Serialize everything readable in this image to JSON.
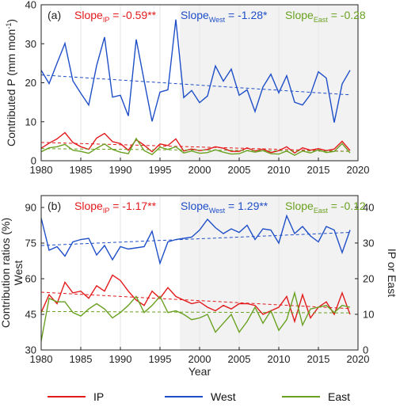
{
  "colors": {
    "IP": "#e31a1c",
    "West": "#1f4fc8",
    "East": "#6aa121",
    "shade": "#f2f2f2",
    "axis": "#222222"
  },
  "legend": {
    "position": "bottom",
    "items": [
      {
        "key": "IP",
        "label": "IP"
      },
      {
        "key": "West",
        "label": "West"
      },
      {
        "key": "East",
        "label": "East"
      }
    ]
  },
  "xaxis": {
    "label": "Year",
    "ticks": [
      1980,
      1985,
      1990,
      1995,
      2000,
      2005,
      2010,
      2015,
      2020
    ],
    "range": [
      1980,
      2020
    ]
  },
  "chart_data": [
    {
      "type": "line",
      "panel": "(a)",
      "ylabel": "Contributed P (mm mon",
      "ylabel_sup": "-1",
      "ylabel_end": ")",
      "ylim": [
        0,
        40
      ],
      "yticks": [
        0,
        10,
        20,
        30,
        40
      ],
      "shade_from": 1997.5,
      "x": [
        1980,
        1981,
        1982,
        1983,
        1984,
        1985,
        1986,
        1987,
        1988,
        1989,
        1990,
        1991,
        1992,
        1993,
        1994,
        1995,
        1996,
        1997,
        1998,
        1999,
        2000,
        2001,
        2002,
        2003,
        2004,
        2005,
        2006,
        2007,
        2008,
        2009,
        2010,
        2011,
        2012,
        2013,
        2014,
        2015,
        2016,
        2017,
        2018,
        2019
      ],
      "series": [
        {
          "key": "West",
          "name": "West",
          "values": [
            23.2,
            19.8,
            25.0,
            30.1,
            20.5,
            17.3,
            14.3,
            24.4,
            31.7,
            16.3,
            16.8,
            11.5,
            31.1,
            20.5,
            10.1,
            17.6,
            18.2,
            36.2,
            16.2,
            18.0,
            14.9,
            16.6,
            24.3,
            20.4,
            23.5,
            16.8,
            18.2,
            12.6,
            18.9,
            22.2,
            17.4,
            21.8,
            15.0,
            14.3,
            17.0,
            22.8,
            21.2,
            9.8,
            19.7,
            23.2
          ],
          "trend": [
            22.0,
            16.9
          ]
        },
        {
          "key": "IP",
          "name": "IP",
          "values": [
            3.2,
            4.5,
            5.6,
            7.2,
            4.7,
            3.6,
            2.9,
            5.8,
            7.0,
            4.9,
            4.4,
            2.7,
            5.4,
            4.0,
            2.3,
            4.3,
            3.9,
            5.6,
            2.5,
            3.0,
            2.6,
            2.9,
            3.6,
            3.2,
            2.4,
            2.4,
            3.3,
            2.5,
            3.0,
            2.1,
            2.6,
            3.6,
            2.0,
            3.3,
            2.7,
            3.1,
            2.6,
            3.0,
            5.0,
            2.6
          ],
          "trend": [
            4.7,
            2.4
          ]
        },
        {
          "key": "East",
          "name": "East",
          "values": [
            2.3,
            3.3,
            3.6,
            4.2,
            2.7,
            2.4,
            1.9,
            3.2,
            4.3,
            2.9,
            2.2,
            1.8,
            5.7,
            2.6,
            1.6,
            3.5,
            2.9,
            3.6,
            2.0,
            2.5,
            1.9,
            2.1,
            2.8,
            2.2,
            1.7,
            1.8,
            2.6,
            2.2,
            2.6,
            1.8,
            1.7,
            2.5,
            1.4,
            2.5,
            2.0,
            2.8,
            2.1,
            2.4,
            4.4,
            2.0
          ],
          "trend": [
            3.1,
            2.4
          ]
        }
      ],
      "slopes": [
        {
          "key": "IP",
          "label": "Slope",
          "sub": "IP",
          "value": " = -0.59**"
        },
        {
          "key": "West",
          "label": "Slope",
          "sub": "West",
          "value": " = -1.28*"
        },
        {
          "key": "East",
          "label": "Slope",
          "sub": "East",
          "value": " = -0.28"
        }
      ]
    },
    {
      "type": "line",
      "panel": "(b)",
      "ylabel": "Contribution ratios (%)",
      "ylabel_left_color": "West",
      "ylabel_left_colored": "West",
      "ylabel_right": "IP or East",
      "ylim": [
        30,
        95
      ],
      "yticks": [
        30,
        45,
        60,
        75,
        90
      ],
      "ylim_right": [
        0,
        43.3
      ],
      "yticks_right": [
        0,
        10,
        20,
        30,
        40
      ],
      "shade_from": 1997.5,
      "x": [
        1980,
        1981,
        1982,
        1983,
        1984,
        1985,
        1986,
        1987,
        1988,
        1989,
        1990,
        1991,
        1992,
        1993,
        1994,
        1995,
        1996,
        1997,
        1998,
        1999,
        2000,
        2001,
        2002,
        2003,
        2004,
        2005,
        2006,
        2007,
        2008,
        2009,
        2010,
        2011,
        2012,
        2013,
        2014,
        2015,
        2016,
        2017,
        2018,
        2019
      ],
      "series": [
        {
          "key": "West",
          "name": "West",
          "axis": "left",
          "values": [
            85.5,
            72.0,
            73.5,
            69.5,
            75.5,
            76.5,
            77.0,
            70.0,
            74.0,
            68.0,
            73.5,
            72.5,
            73.0,
            73.5,
            80.0,
            66.5,
            75.5,
            76.5,
            77.0,
            77.5,
            80.5,
            85.0,
            81.5,
            79.0,
            81.0,
            79.5,
            82.5,
            76.5,
            81.0,
            80.5,
            75.0,
            86.5,
            79.0,
            82.0,
            78.0,
            75.5,
            82.0,
            80.5,
            71.0,
            80.5
          ],
          "trend": [
            74.0,
            79.5
          ]
        },
        {
          "key": "IP",
          "name": "IP",
          "axis": "right",
          "values": [
            10.5,
            15.5,
            13.0,
            19.0,
            16.0,
            16.5,
            14.5,
            18.0,
            16.5,
            21.0,
            19.5,
            16.5,
            14.0,
            12.5,
            16.5,
            14.5,
            17.5,
            15.0,
            14.0,
            13.0,
            13.5,
            12.0,
            11.0,
            12.5,
            11.5,
            13.0,
            13.0,
            12.5,
            10.0,
            11.0,
            12.0,
            15.0,
            8.0,
            15.5,
            9.0,
            12.0,
            13.5,
            10.0,
            16.0,
            10.0
          ],
          "trend": [
            16.2,
            11.6
          ]
        },
        {
          "key": "East",
          "name": "East",
          "axis": "right",
          "values": [
            2.5,
            14.5,
            13.5,
            13.5,
            10.5,
            9.5,
            11.5,
            13.0,
            11.5,
            9.0,
            10.5,
            12.5,
            15.0,
            10.5,
            12.5,
            15.0,
            10.5,
            11.0,
            10.0,
            8.5,
            9.0,
            10.0,
            5.0,
            7.5,
            10.0,
            5.0,
            8.0,
            12.0,
            7.5,
            11.0,
            5.5,
            8.5,
            16.0,
            7.0,
            11.5,
            12.0,
            12.5,
            10.5,
            12.5,
            12.0
          ],
          "trend": [
            10.8,
            10.4
          ]
        }
      ],
      "slopes": [
        {
          "key": "IP",
          "label": "Slope",
          "sub": "IP",
          "value": " = -1.17**"
        },
        {
          "key": "West",
          "label": "Slope",
          "sub": "West",
          "value": " = 1.29**"
        },
        {
          "key": "East",
          "label": "Slope",
          "sub": "East",
          "value": " = -0.12"
        }
      ]
    }
  ]
}
